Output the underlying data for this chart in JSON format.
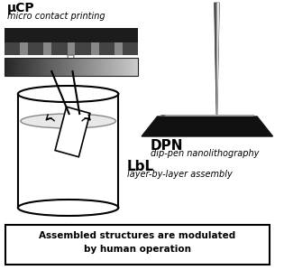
{
  "title_ucp": "μCP",
  "subtitle_ucp": "micro contact printing",
  "title_dpn": "DPN",
  "subtitle_dpn": "dip-pen nanolithography",
  "title_lbl": "LbL",
  "subtitle_lbl": "layer-by-layer assembly",
  "bottom_text_line1": "Assembled structures are modulated",
  "bottom_text_line2": "by human operation"
}
